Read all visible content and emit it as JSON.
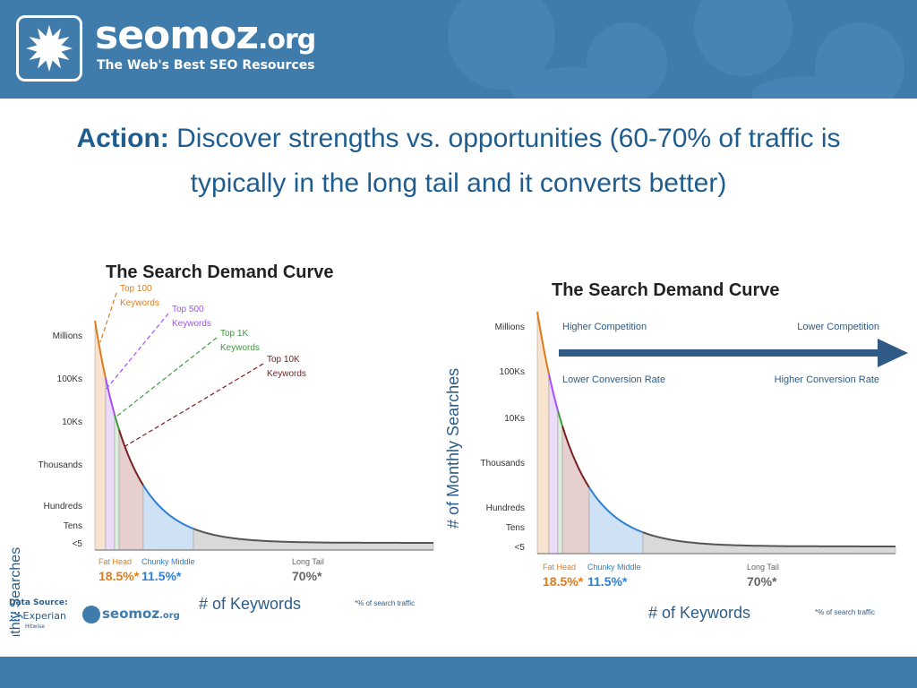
{
  "header": {
    "brand_main": "seomoz",
    "brand_tld": ".org",
    "tagline": "The Web's Best SEO Resources",
    "logo_icon": "star-burst-icon"
  },
  "headline": {
    "keyword": "Action:",
    "line1": "Discover strengths vs. opportunities (60-70% of traffic is",
    "line2": "typically in the long tail and it converts better)"
  },
  "colors": {
    "bar": "#3f7cac",
    "headline": "#1f5d8f",
    "orange": "#e07b1a",
    "purple": "#a64dff",
    "green": "#3d9b3d",
    "dark_red": "#7a1e1e",
    "blue": "#2d7fd3",
    "grey_fill": "#d9d9d9",
    "arrow": "#2f5a85"
  },
  "chart_data": [
    {
      "type": "area",
      "title": "The Search Demand Curve",
      "ylabel": "# of Monthly Searches",
      "xlabel": "# of Keywords",
      "y_ticks": [
        "Millions",
        "100Ks",
        "10Ks",
        "Thousands",
        "Hundreds",
        "Tens",
        "<5"
      ],
      "segments": [
        {
          "name": "Fat Head",
          "share": "18.5%*"
        },
        {
          "name": "Chunky Middle",
          "share": "11.5%*"
        },
        {
          "name": "Long Tail",
          "share": "70%*"
        }
      ],
      "callouts": [
        {
          "label": [
            "Top 100",
            "Keywords"
          ],
          "color": "#e07b1a"
        },
        {
          "label": [
            "Top 500",
            "Keywords"
          ],
          "color": "#a64dff"
        },
        {
          "label": [
            "Top 1K",
            "Keywords"
          ],
          "color": "#3d9b3d"
        },
        {
          "label": [
            "Top 10K",
            "Keywords"
          ],
          "color": "#7a1e1e"
        }
      ],
      "footnote": "*% of search traffic",
      "source_label": "Data Source:",
      "source_names": [
        "Experian",
        "Hitwise"
      ]
    },
    {
      "type": "area",
      "title": "The Search Demand Curve",
      "ylabel": "# of Monthly Searches",
      "xlabel": "# of Keywords",
      "y_ticks": [
        "Millions",
        "100Ks",
        "10Ks",
        "Thousands",
        "Hundreds",
        "Tens",
        "<5"
      ],
      "segments": [
        {
          "name": "Fat Head",
          "share": "18.5%*"
        },
        {
          "name": "Chunky Middle",
          "share": "11.5%*"
        },
        {
          "name": "Long Tail",
          "share": "70%*"
        }
      ],
      "arrow_labels": {
        "left_top": "Higher Competition",
        "right_top": "Lower Competition",
        "left_bottom": "Lower Conversion Rate",
        "right_bottom": "Higher Conversion Rate"
      },
      "footnote": "*% of search traffic"
    }
  ]
}
